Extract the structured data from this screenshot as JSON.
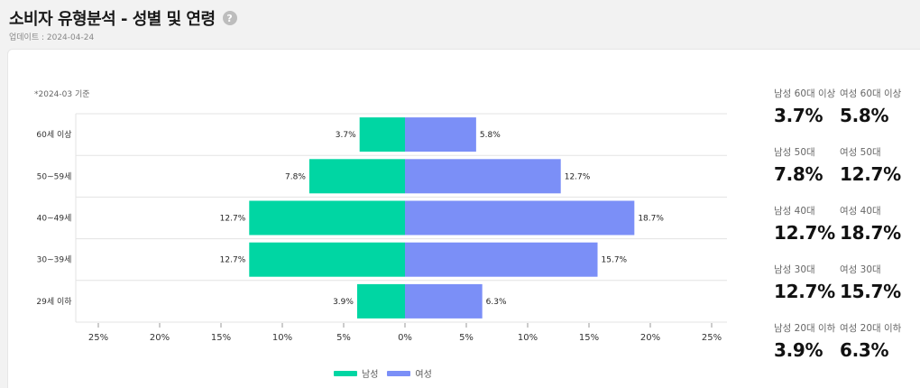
{
  "header": {
    "title": "소비자 유형분석 - 성별 및 연령",
    "help_icon": "?",
    "update_text": "업데이트 : 2024-04-24"
  },
  "colors": {
    "male": "#00d6a3",
    "female": "#7b8ff7"
  },
  "chart_data": {
    "type": "bar",
    "orientation": "horizontal-butterfly",
    "note": "*2024-03 기준",
    "categories": [
      "60세 이상",
      "50~59세",
      "40~49세",
      "30~39세",
      "29세 이하"
    ],
    "series": [
      {
        "name": "남성",
        "values": [
          3.7,
          7.8,
          12.7,
          12.7,
          3.9
        ],
        "labels": [
          "3.7%",
          "7.8%",
          "12.7%",
          "12.7%",
          "3.9%"
        ]
      },
      {
        "name": "여성",
        "values": [
          5.8,
          12.7,
          18.7,
          15.7,
          6.3
        ],
        "labels": [
          "5.8%",
          "12.7%",
          "18.7%",
          "15.7%",
          "6.3%"
        ]
      }
    ],
    "xlim": [
      -25,
      25
    ],
    "x_ticks": [
      -25,
      -20,
      -15,
      -10,
      -5,
      0,
      5,
      10,
      15,
      20,
      25
    ],
    "x_tick_labels": [
      "25%",
      "20%",
      "15%",
      "10%",
      "5%",
      "0%",
      "5%",
      "10%",
      "15%",
      "20%",
      "25%"
    ],
    "grid": true,
    "legend": "bottom"
  },
  "stats": [
    {
      "male_label": "남성 60대 이상",
      "male_value": "3.7%",
      "female_label": "여성 60대 이상",
      "female_value": "5.8%"
    },
    {
      "male_label": "남성 50대",
      "male_value": "7.8%",
      "female_label": "여성 50대",
      "female_value": "12.7%"
    },
    {
      "male_label": "남성 40대",
      "male_value": "12.7%",
      "female_label": "여성 40대",
      "female_value": "18.7%"
    },
    {
      "male_label": "남성 30대",
      "male_value": "12.7%",
      "female_label": "여성 30대",
      "female_value": "15.7%"
    },
    {
      "male_label": "남성 20대 이하",
      "male_value": "3.9%",
      "female_label": "여성 20대 이하",
      "female_value": "6.3%"
    }
  ]
}
